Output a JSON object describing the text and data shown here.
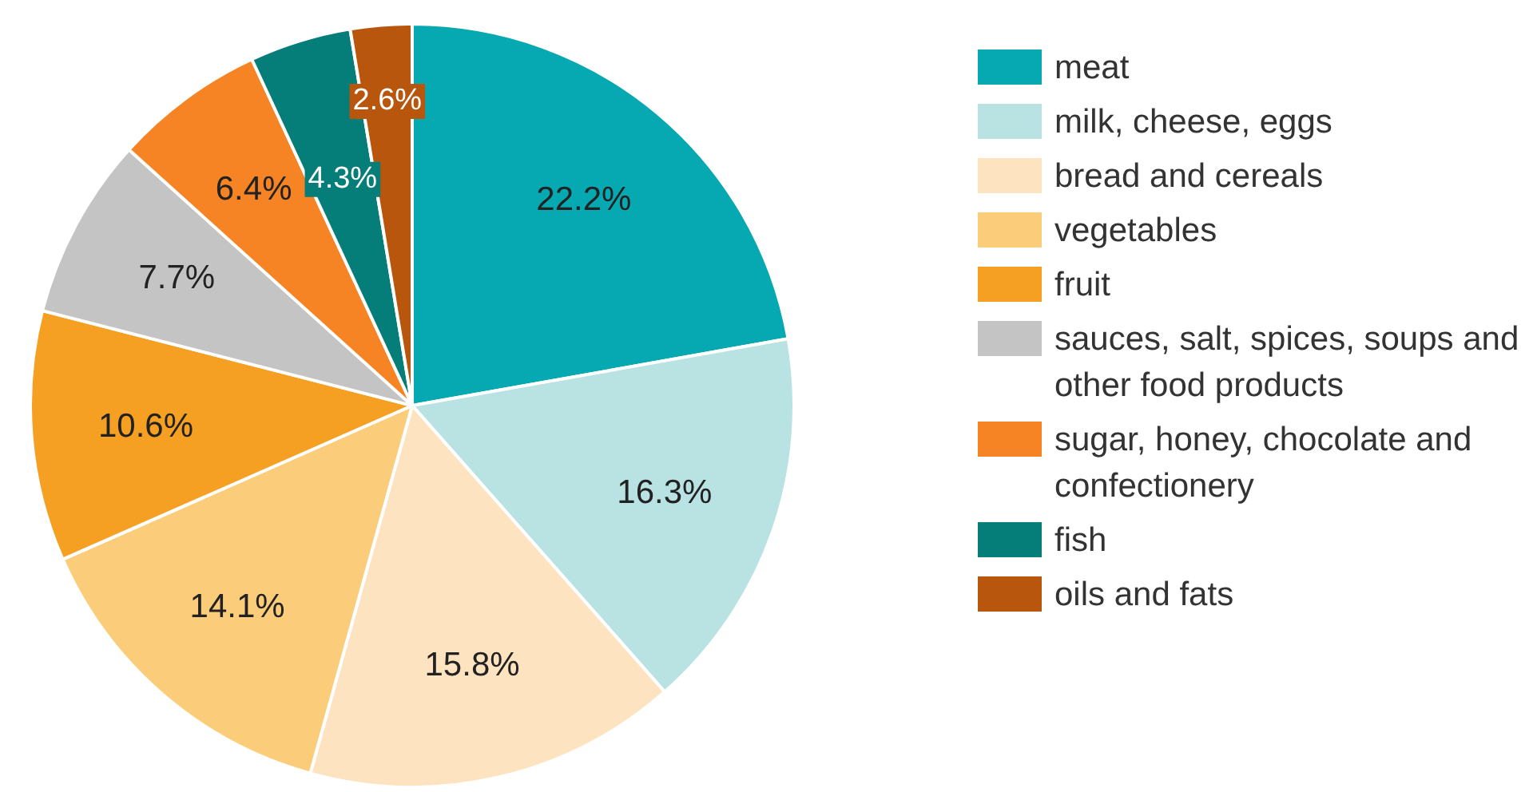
{
  "chart_data": {
    "type": "pie",
    "categories": [
      "meat",
      "milk, cheese, eggs",
      "bread and cereals",
      "vegetables",
      "fruit",
      "sauces, salt, spices, soups and other food products",
      "sugar, honey, chocolate and confectionery",
      "fish",
      "oils and fats"
    ],
    "values": [
      22.2,
      16.3,
      15.8,
      14.1,
      10.6,
      7.7,
      6.4,
      4.3,
      2.6
    ],
    "colors": [
      "#06a8b1",
      "#b9e2e3",
      "#fde3bf",
      "#fbcd7a",
      "#f5a023",
      "#c4c4c4",
      "#f78424",
      "#057d78",
      "#b8560d"
    ],
    "value_labels": [
      "22.2%",
      "16.3%",
      "15.8%",
      "14.1%",
      "10.6%",
      "7.7%",
      "6.4%",
      "4.3%",
      "2.6%"
    ],
    "legend": "right"
  }
}
